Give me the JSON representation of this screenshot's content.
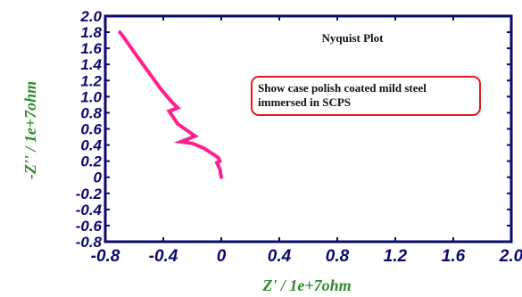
{
  "chart_data": {
    "type": "line",
    "title": "Nyquist Plot",
    "xlabel": "Z' / 1e+7ohm",
    "ylabel": "-Z'' / 1e+7ohm",
    "xlim": [
      -0.8,
      2.0
    ],
    "ylim": [
      -0.8,
      2.0
    ],
    "x_ticks": [
      "-0.8",
      "-0.4",
      "0",
      "0.4",
      "0.8",
      "1.2",
      "1.6",
      "2.0"
    ],
    "y_ticks": [
      "2.0",
      "1.8",
      "1.6",
      "1.4",
      "1.2",
      "1.0",
      "0.8",
      "0.6",
      "0.4",
      "0.2",
      "0",
      "-0.2",
      "-0.4",
      "-0.6",
      "-0.8"
    ],
    "x_tick_values": [
      -0.8,
      -0.4,
      0,
      0.4,
      0.8,
      1.2,
      1.6,
      2.0
    ],
    "y_tick_values": [
      2.0,
      1.8,
      1.6,
      1.4,
      1.2,
      1.0,
      0.8,
      0.6,
      0.4,
      0.2,
      0,
      -0.2,
      -0.4,
      -0.6,
      -0.8
    ],
    "grid": false,
    "annotation": "Show case polish coated mild steel immersed in SCPS",
    "series": [
      {
        "color": "#ff1f8e",
        "x": [
          -0.7,
          -0.67,
          -0.6,
          -0.5,
          -0.42,
          -0.34,
          -0.3,
          -0.36,
          -0.3,
          -0.22,
          -0.18,
          -0.28,
          -0.2,
          -0.12,
          -0.06,
          -0.02,
          -0.01,
          -0.03,
          -0.01,
          -0.005,
          0.0
        ],
        "y": [
          1.8,
          1.73,
          1.55,
          1.3,
          1.1,
          0.93,
          0.86,
          0.82,
          0.66,
          0.56,
          0.51,
          0.44,
          0.42,
          0.36,
          0.29,
          0.24,
          0.2,
          0.18,
          0.1,
          0.04,
          0.0
        ]
      }
    ]
  }
}
